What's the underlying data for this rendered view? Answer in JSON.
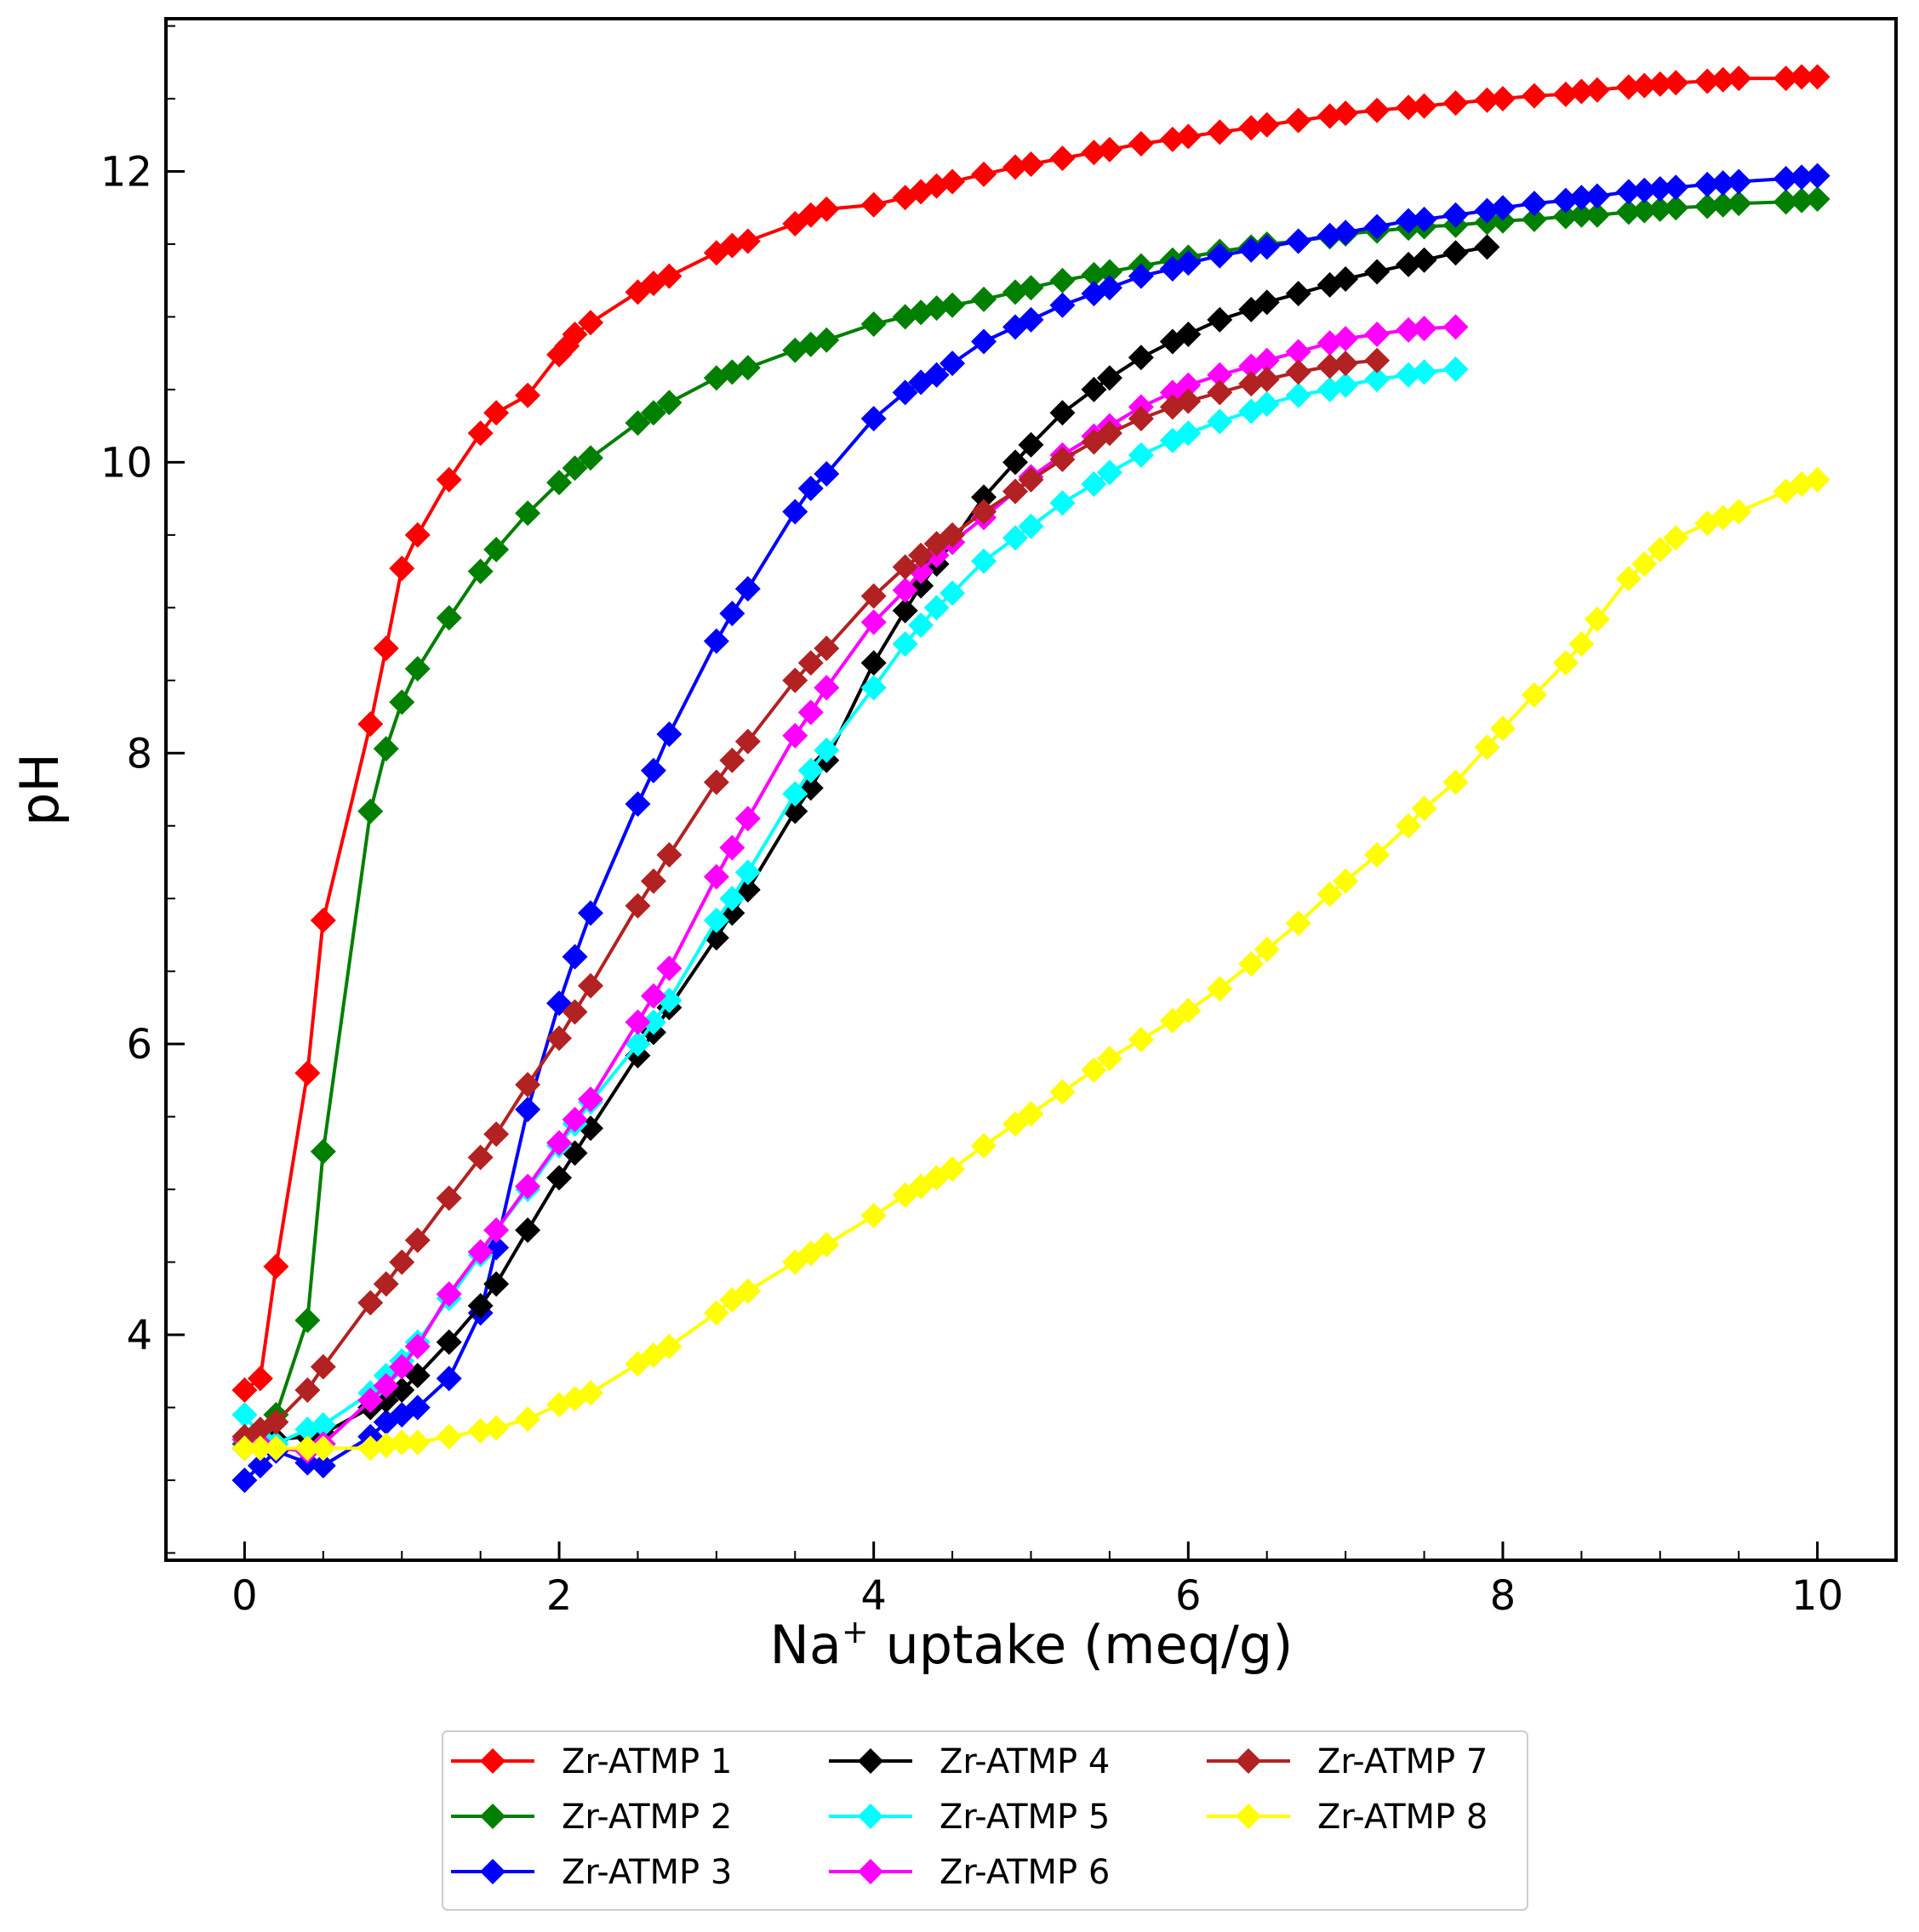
{
  "chart_data": {
    "type": "line",
    "title": "",
    "xlabel_main": "Na",
    "xlabel_sup": "+",
    "xlabel_rest": " uptake (meq/g)",
    "ylabel": "pH",
    "xlim": [
      -0.5,
      10.5
    ],
    "ylim": [
      2.45,
      13.05
    ],
    "xticks": [
      0,
      2,
      4,
      6,
      8,
      10
    ],
    "yticks": [
      4,
      6,
      8,
      10,
      12
    ],
    "xtick_labels": [
      "0",
      "2",
      "4",
      "6",
      "8",
      "10"
    ],
    "ytick_labels": [
      "4",
      "6",
      "8",
      "10",
      "12"
    ],
    "grid": false,
    "legend": "bottom-center, 3 columns",
    "series": [
      {
        "name": "Zr-ATMP 1",
        "color": "#ff0000",
        "x": [
          0,
          0.1,
          0.2,
          0.4,
          0.5,
          0.8,
          0.9,
          1.0,
          1.1,
          1.3,
          1.5,
          1.6,
          1.8,
          2.0,
          2.05,
          2.1,
          2.2,
          2.5,
          2.6,
          2.7,
          3.0,
          3.1,
          3.2,
          3.5,
          3.6,
          3.7,
          4.0,
          4.2,
          4.3,
          4.4,
          4.5,
          4.7,
          4.9,
          5.0,
          5.2,
          5.4,
          5.5,
          5.7,
          5.9,
          6.0,
          6.2,
          6.4,
          6.5,
          6.7,
          6.9,
          7.0,
          7.2,
          7.4,
          7.5,
          7.7,
          7.9,
          8.0,
          8.2,
          8.4,
          8.5,
          8.6,
          8.8,
          8.9,
          9.0,
          9.1,
          9.3,
          9.4,
          9.5,
          9.8,
          9.9,
          10.0
        ],
        "y": [
          3.62,
          3.7,
          4.47,
          5.8,
          6.85,
          8.2,
          8.72,
          9.27,
          9.5,
          9.88,
          10.2,
          10.34,
          10.46,
          10.74,
          10.8,
          10.88,
          10.96,
          11.17,
          11.23,
          11.28,
          11.44,
          11.49,
          11.52,
          11.64,
          11.7,
          11.74,
          11.77,
          11.82,
          11.86,
          11.9,
          11.93,
          11.98,
          12.03,
          12.05,
          12.09,
          12.13,
          12.15,
          12.19,
          12.22,
          12.24,
          12.27,
          12.3,
          12.32,
          12.35,
          12.38,
          12.4,
          12.42,
          12.44,
          12.45,
          12.47,
          12.49,
          12.5,
          12.52,
          12.53,
          12.55,
          12.56,
          12.58,
          12.59,
          12.6,
          12.61,
          12.62,
          12.63,
          12.64,
          12.64,
          12.65,
          12.65
        ]
      },
      {
        "name": "Zr-ATMP 2",
        "color": "#007f00",
        "x": [
          0,
          0.2,
          0.4,
          0.5,
          0.8,
          0.9,
          1.0,
          1.1,
          1.3,
          1.5,
          1.6,
          1.8,
          2.0,
          2.1,
          2.2,
          2.5,
          2.6,
          2.7,
          3.0,
          3.1,
          3.2,
          3.5,
          3.6,
          3.7,
          4.0,
          4.2,
          4.3,
          4.4,
          4.5,
          4.7,
          4.9,
          5.0,
          5.2,
          5.4,
          5.5,
          5.7,
          5.9,
          6.0,
          6.2,
          6.4,
          6.5,
          6.7,
          6.9,
          7.0,
          7.2,
          7.4,
          7.5,
          7.7,
          7.9,
          8.0,
          8.2,
          8.4,
          8.5,
          8.6,
          8.8,
          8.9,
          9.0,
          9.1,
          9.3,
          9.4,
          9.5,
          9.8,
          9.9,
          10.0
        ],
        "y": [
          3.25,
          3.45,
          4.1,
          5.26,
          7.6,
          8.03,
          8.35,
          8.58,
          8.93,
          9.25,
          9.4,
          9.65,
          9.86,
          9.96,
          10.03,
          10.27,
          10.34,
          10.41,
          10.58,
          10.62,
          10.65,
          10.77,
          10.81,
          10.84,
          10.95,
          11.0,
          11.03,
          11.06,
          11.08,
          11.12,
          11.17,
          11.2,
          11.25,
          11.29,
          11.31,
          11.35,
          11.39,
          11.41,
          11.45,
          11.48,
          11.5,
          11.52,
          11.55,
          11.57,
          11.59,
          11.61,
          11.62,
          11.63,
          11.65,
          11.66,
          11.67,
          11.69,
          11.7,
          11.7,
          11.72,
          11.73,
          11.74,
          11.75,
          11.76,
          11.77,
          11.78,
          11.79,
          11.8,
          11.81
        ]
      },
      {
        "name": "Zr-ATMP 3",
        "color": "#0000ff",
        "x": [
          0,
          0.1,
          0.2,
          0.4,
          0.5,
          0.8,
          0.9,
          1.0,
          1.1,
          1.3,
          1.5,
          1.6,
          1.8,
          2.0,
          2.1,
          2.2,
          2.5,
          2.6,
          2.7,
          3.0,
          3.1,
          3.2,
          3.5,
          3.6,
          3.7,
          4.0,
          4.2,
          4.3,
          4.4,
          4.5,
          4.7,
          4.9,
          5.0,
          5.2,
          5.4,
          5.5,
          5.7,
          5.9,
          6.0,
          6.2,
          6.4,
          6.5,
          6.7,
          6.9,
          7.0,
          7.2,
          7.4,
          7.5,
          7.7,
          7.9,
          8.0,
          8.2,
          8.4,
          8.5,
          8.6,
          8.8,
          8.9,
          9.0,
          9.1,
          9.3,
          9.4,
          9.5,
          9.8,
          9.9,
          10.0
        ],
        "y": [
          3.0,
          3.1,
          3.2,
          3.12,
          3.1,
          3.3,
          3.4,
          3.45,
          3.5,
          3.7,
          4.15,
          4.6,
          5.55,
          6.28,
          6.6,
          6.9,
          7.65,
          7.88,
          8.13,
          8.77,
          8.96,
          9.13,
          9.66,
          9.82,
          9.92,
          10.3,
          10.48,
          10.55,
          10.6,
          10.68,
          10.83,
          10.93,
          10.98,
          11.08,
          11.16,
          11.2,
          11.28,
          11.33,
          11.37,
          11.42,
          11.46,
          11.48,
          11.52,
          11.56,
          11.58,
          11.62,
          11.66,
          11.67,
          11.7,
          11.73,
          11.75,
          11.78,
          11.8,
          11.82,
          11.83,
          11.86,
          11.87,
          11.88,
          11.89,
          11.91,
          11.92,
          11.93,
          11.95,
          11.96,
          11.97
        ]
      },
      {
        "name": "Zr-ATMP 4",
        "color": "#000000",
        "x": [
          0,
          0.1,
          0.2,
          0.4,
          0.5,
          0.8,
          0.9,
          1.0,
          1.1,
          1.3,
          1.5,
          1.6,
          1.8,
          2.0,
          2.1,
          2.2,
          2.5,
          2.6,
          2.7,
          3.0,
          3.1,
          3.2,
          3.5,
          3.6,
          3.7,
          4.0,
          4.2,
          4.3,
          4.4,
          4.5,
          4.7,
          4.9,
          5.0,
          5.2,
          5.4,
          5.5,
          5.7,
          5.9,
          6.0,
          6.2,
          6.4,
          6.5,
          6.7,
          6.9,
          7.0,
          7.2,
          7.4,
          7.5,
          7.7,
          7.9
        ],
        "y": [
          3.22,
          3.25,
          3.28,
          3.3,
          3.32,
          3.5,
          3.55,
          3.62,
          3.72,
          3.95,
          4.2,
          4.35,
          4.72,
          5.08,
          5.25,
          5.42,
          5.92,
          6.08,
          6.25,
          6.73,
          6.9,
          7.06,
          7.6,
          7.76,
          7.95,
          8.62,
          8.98,
          9.15,
          9.3,
          9.45,
          9.76,
          10.0,
          10.12,
          10.34,
          10.5,
          10.58,
          10.72,
          10.83,
          10.88,
          10.98,
          11.05,
          11.1,
          11.16,
          11.22,
          11.26,
          11.31,
          11.36,
          11.39,
          11.44,
          11.48
        ]
      },
      {
        "name": "Zr-ATMP 5",
        "color": "#00ffff",
        "x": [
          0,
          0.1,
          0.2,
          0.4,
          0.5,
          0.8,
          0.9,
          1.0,
          1.1,
          1.3,
          1.5,
          1.6,
          1.8,
          2.0,
          2.1,
          2.2,
          2.5,
          2.6,
          2.7,
          3.0,
          3.1,
          3.2,
          3.5,
          3.6,
          3.7,
          4.0,
          4.2,
          4.3,
          4.4,
          4.5,
          4.7,
          4.9,
          5.0,
          5.2,
          5.4,
          5.5,
          5.7,
          5.9,
          6.0,
          6.2,
          6.4,
          6.5,
          6.7,
          6.9,
          7.0,
          7.2,
          7.4,
          7.5,
          7.7
        ],
        "y": [
          3.45,
          3.3,
          3.25,
          3.35,
          3.38,
          3.6,
          3.72,
          3.82,
          3.95,
          4.25,
          4.55,
          4.72,
          5.0,
          5.3,
          5.45,
          5.6,
          6.0,
          6.15,
          6.3,
          6.85,
          7.0,
          7.18,
          7.72,
          7.88,
          8.02,
          8.45,
          8.75,
          8.88,
          9.0,
          9.1,
          9.32,
          9.48,
          9.56,
          9.72,
          9.85,
          9.93,
          10.05,
          10.15,
          10.2,
          10.28,
          10.35,
          10.4,
          10.46,
          10.5,
          10.53,
          10.57,
          10.6,
          10.62,
          10.64
        ]
      },
      {
        "name": "Zr-ATMP 6",
        "color": "#ff00ff",
        "x": [
          0,
          0.1,
          0.2,
          0.4,
          0.5,
          0.8,
          0.9,
          1.0,
          1.1,
          1.3,
          1.5,
          1.6,
          1.8,
          2.0,
          2.1,
          2.2,
          2.5,
          2.6,
          2.7,
          3.0,
          3.1,
          3.2,
          3.5,
          3.6,
          3.7,
          4.0,
          4.2,
          4.3,
          4.4,
          4.5,
          4.7,
          4.9,
          5.0,
          5.2,
          5.4,
          5.5,
          5.7,
          5.9,
          6.0,
          6.2,
          6.4,
          6.5,
          6.7,
          6.9,
          7.0,
          7.2,
          7.4,
          7.5,
          7.7
        ],
        "y": [
          3.28,
          3.25,
          3.22,
          3.2,
          3.25,
          3.55,
          3.65,
          3.78,
          3.92,
          4.28,
          4.57,
          4.72,
          5.02,
          5.32,
          5.48,
          5.62,
          6.15,
          6.33,
          6.52,
          7.15,
          7.35,
          7.55,
          8.12,
          8.28,
          8.45,
          8.9,
          9.12,
          9.25,
          9.36,
          9.45,
          9.62,
          9.8,
          9.9,
          10.05,
          10.18,
          10.25,
          10.38,
          10.48,
          10.53,
          10.6,
          10.66,
          10.7,
          10.76,
          10.82,
          10.85,
          10.88,
          10.91,
          10.92,
          10.93
        ]
      },
      {
        "name": "Zr-ATMP 7",
        "color": "#b22222",
        "x": [
          0,
          0.1,
          0.2,
          0.4,
          0.5,
          0.8,
          0.9,
          1.0,
          1.1,
          1.3,
          1.5,
          1.6,
          1.8,
          2.0,
          2.1,
          2.2,
          2.5,
          2.6,
          2.7,
          3.0,
          3.1,
          3.2,
          3.5,
          3.6,
          3.7,
          4.0,
          4.2,
          4.3,
          4.4,
          4.5,
          4.7,
          4.9,
          5.0,
          5.2,
          5.4,
          5.5,
          5.7,
          5.9,
          6.0,
          6.2,
          6.4,
          6.5,
          6.7,
          6.9,
          7.0,
          7.2
        ],
        "y": [
          3.3,
          3.35,
          3.4,
          3.62,
          3.78,
          4.22,
          4.35,
          4.5,
          4.65,
          4.94,
          5.22,
          5.38,
          5.72,
          6.04,
          6.22,
          6.4,
          6.95,
          7.12,
          7.3,
          7.8,
          7.95,
          8.08,
          8.5,
          8.62,
          8.72,
          9.08,
          9.28,
          9.36,
          9.44,
          9.5,
          9.66,
          9.8,
          9.88,
          10.02,
          10.14,
          10.2,
          10.3,
          10.38,
          10.42,
          10.48,
          10.54,
          10.57,
          10.62,
          10.66,
          10.68,
          10.7
        ]
      },
      {
        "name": "Zr-ATMP 8",
        "color": "#ffff00",
        "x": [
          0,
          0.1,
          0.2,
          0.4,
          0.5,
          0.8,
          0.9,
          1.0,
          1.1,
          1.3,
          1.5,
          1.6,
          1.8,
          2.0,
          2.1,
          2.2,
          2.5,
          2.6,
          2.7,
          3.0,
          3.1,
          3.2,
          3.5,
          3.6,
          3.7,
          4.0,
          4.2,
          4.3,
          4.4,
          4.5,
          4.7,
          4.9,
          5.0,
          5.2,
          5.4,
          5.5,
          5.7,
          5.9,
          6.0,
          6.2,
          6.4,
          6.5,
          6.7,
          6.9,
          7.0,
          7.2,
          7.4,
          7.5,
          7.7,
          7.9,
          8.0,
          8.2,
          8.4,
          8.5,
          8.6,
          8.8,
          8.9,
          9.0,
          9.1,
          9.3,
          9.4,
          9.5,
          9.8,
          9.9,
          10.0
        ],
        "y": [
          3.22,
          3.22,
          3.22,
          3.22,
          3.22,
          3.22,
          3.24,
          3.26,
          3.26,
          3.3,
          3.34,
          3.36,
          3.42,
          3.52,
          3.56,
          3.6,
          3.8,
          3.86,
          3.92,
          4.15,
          4.24,
          4.3,
          4.5,
          4.56,
          4.62,
          4.82,
          4.96,
          5.02,
          5.08,
          5.14,
          5.3,
          5.45,
          5.52,
          5.67,
          5.82,
          5.9,
          6.03,
          6.16,
          6.23,
          6.38,
          6.55,
          6.65,
          6.83,
          7.03,
          7.12,
          7.3,
          7.5,
          7.62,
          7.8,
          8.04,
          8.17,
          8.4,
          8.62,
          8.75,
          8.92,
          9.2,
          9.3,
          9.4,
          9.48,
          9.58,
          9.62,
          9.66,
          9.8,
          9.85,
          9.88
        ]
      }
    ]
  }
}
